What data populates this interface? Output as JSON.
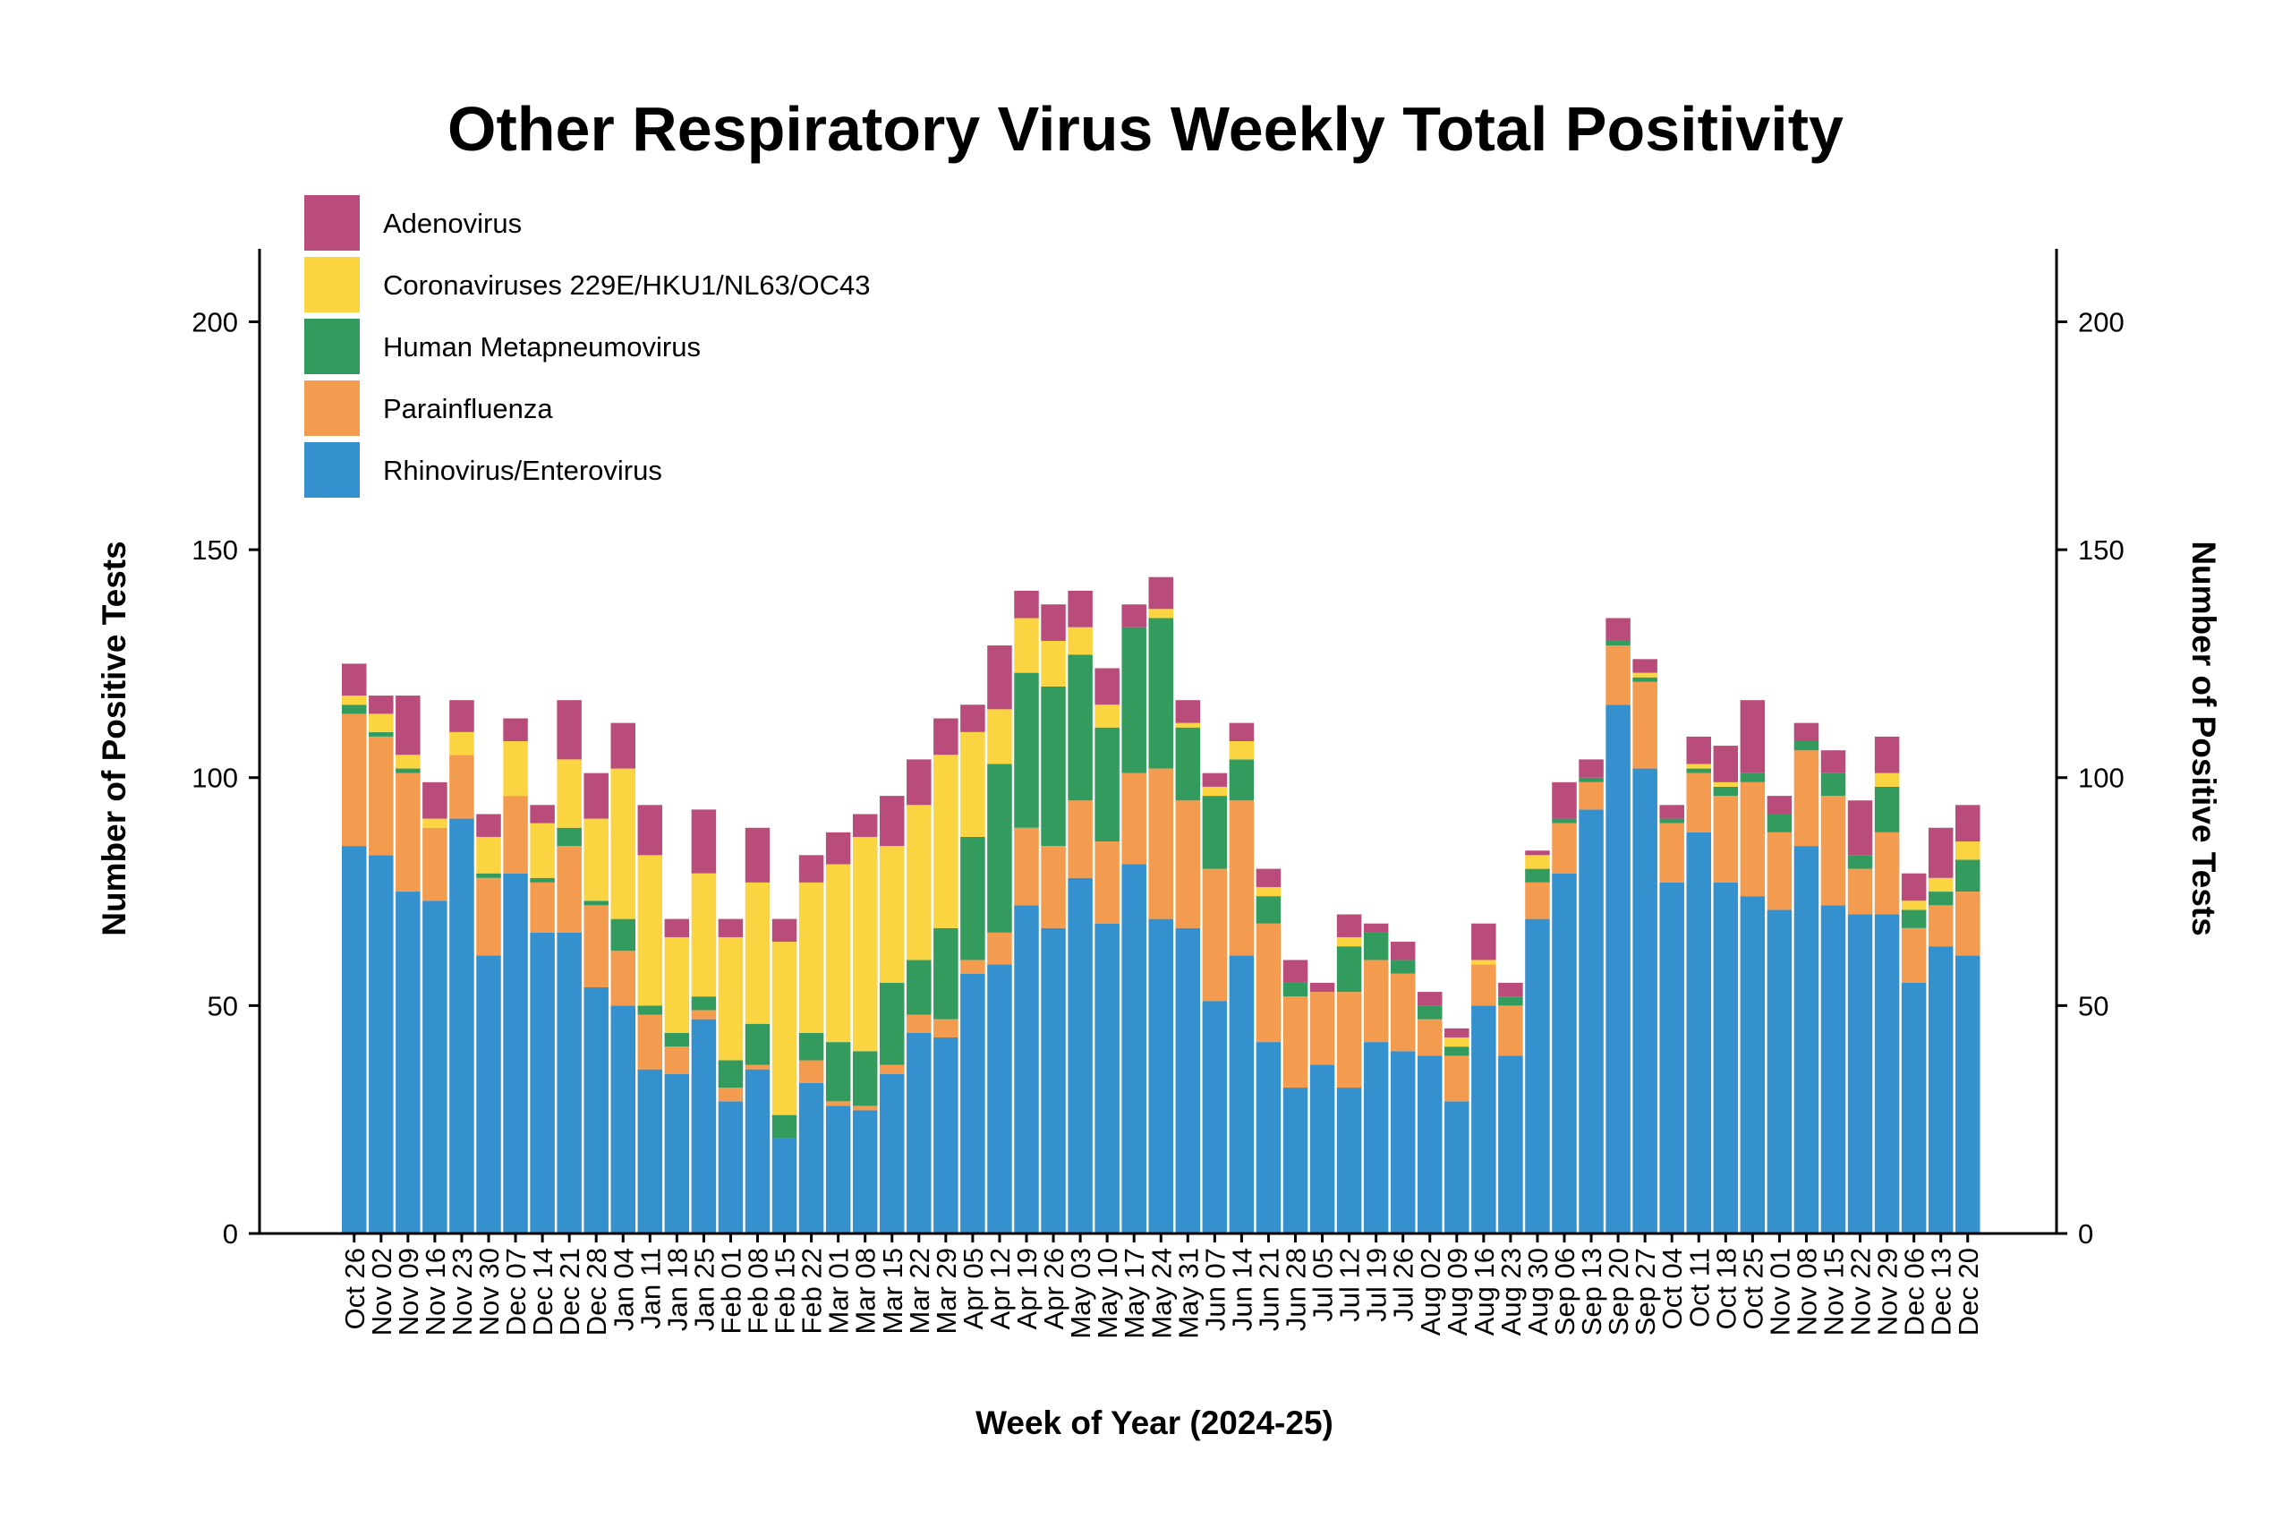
{
  "chart_data": {
    "type": "bar",
    "stacked": true,
    "title": "Other Respiratory Virus Weekly Total Positivity",
    "xlabel": "Week of Year (2024-25)",
    "ylabel": "Number of Positive Tests",
    "ylabel_right": "Number of Positive Tests",
    "ylim": [
      0,
      216
    ],
    "yticks": [
      0,
      50,
      100,
      150,
      200
    ],
    "legend_position": "top-left",
    "grid": false,
    "categories": [
      "Oct 26",
      "Nov 02",
      "Nov 09",
      "Nov 16",
      "Nov 23",
      "Nov 30",
      "Dec 07",
      "Dec 14",
      "Dec 21",
      "Dec 28",
      "Jan 04",
      "Jan 11",
      "Jan 18",
      "Jan 25",
      "Feb 01",
      "Feb 08",
      "Feb 15",
      "Feb 22",
      "Mar 01",
      "Mar 08",
      "Mar 15",
      "Mar 22",
      "Mar 29",
      "Apr 05",
      "Apr 12",
      "Apr 19",
      "Apr 26",
      "May 03",
      "May 10",
      "May 17",
      "May 24",
      "May 31",
      "Jun 07",
      "Jun 14",
      "Jun 21",
      "Jun 28",
      "Jul 05",
      "Jul 12",
      "Jul 19",
      "Jul 26",
      "Aug 02",
      "Aug 09",
      "Aug 16",
      "Aug 23",
      "Aug 30",
      "Sep 06",
      "Sep 13",
      "Sep 20",
      "Sep 27",
      "Oct 04",
      "Oct 11",
      "Oct 18",
      "Oct 25",
      "Nov 01",
      "Nov 08",
      "Nov 15",
      "Nov 22",
      "Nov 29",
      "Dec 06",
      "Dec 13",
      "Dec 20"
    ],
    "series": [
      {
        "name": "Rhinovirus/Enterovirus",
        "color": "#3591cd",
        "values": [
          85,
          83,
          75,
          73,
          91,
          61,
          79,
          66,
          66,
          54,
          50,
          36,
          35,
          47,
          29,
          36,
          21,
          33,
          28,
          27,
          35,
          44,
          43,
          57,
          59,
          72,
          67,
          78,
          68,
          81,
          69,
          67,
          51,
          61,
          42,
          32,
          37,
          32,
          42,
          40,
          39,
          29,
          50,
          39,
          69,
          79,
          93,
          116,
          102,
          77,
          88,
          77,
          74,
          71,
          85,
          72,
          70,
          70,
          55,
          63,
          61
        ]
      },
      {
        "name": "Parainfluenza",
        "color": "#f39b4f",
        "values": [
          29,
          26,
          26,
          16,
          14,
          17,
          17,
          11,
          19,
          18,
          12,
          12,
          6,
          2,
          3,
          1,
          0,
          5,
          1,
          1,
          2,
          4,
          4,
          3,
          7,
          17,
          18,
          17,
          18,
          20,
          33,
          28,
          29,
          34,
          26,
          20,
          16,
          21,
          18,
          17,
          8,
          10,
          9,
          11,
          8,
          11,
          6,
          13,
          19,
          13,
          13,
          19,
          25,
          17,
          21,
          24,
          10,
          18,
          12,
          9,
          14
        ]
      },
      {
        "name": "Human Metapneumovirus",
        "color": "#349b5e",
        "values": [
          2,
          1,
          1,
          0,
          0,
          1,
          0,
          1,
          4,
          1,
          7,
          2,
          3,
          3,
          6,
          9,
          5,
          6,
          13,
          12,
          18,
          12,
          20,
          27,
          37,
          34,
          35,
          32,
          25,
          32,
          33,
          16,
          16,
          9,
          6,
          3,
          0,
          10,
          6,
          3,
          3,
          2,
          0,
          2,
          3,
          1,
          1,
          1,
          1,
          1,
          1,
          2,
          2,
          4,
          2,
          5,
          3,
          10,
          4,
          3,
          7
        ]
      },
      {
        "name": "Coronaviruses 229E/HKU1/NL63/OC43",
        "color": "#fbd541",
        "values": [
          2,
          4,
          3,
          2,
          5,
          8,
          12,
          12,
          15,
          18,
          33,
          33,
          21,
          27,
          27,
          31,
          38,
          33,
          39,
          47,
          30,
          34,
          38,
          23,
          12,
          12,
          10,
          6,
          5,
          0,
          2,
          1,
          2,
          4,
          2,
          0,
          0,
          2,
          0,
          0,
          0,
          2,
          1,
          0,
          3,
          0,
          0,
          0,
          1,
          0,
          1,
          1,
          0,
          0,
          0,
          0,
          0,
          3,
          2,
          3,
          4
        ]
      },
      {
        "name": "Adenovirus",
        "color": "#b94c7b",
        "values": [
          7,
          4,
          13,
          8,
          7,
          5,
          5,
          4,
          13,
          10,
          10,
          11,
          4,
          14,
          4,
          12,
          5,
          6,
          7,
          5,
          11,
          10,
          8,
          6,
          14,
          6,
          8,
          8,
          8,
          5,
          7,
          5,
          3,
          4,
          4,
          5,
          2,
          5,
          2,
          4,
          3,
          2,
          8,
          3,
          1,
          8,
          4,
          5,
          3,
          3,
          6,
          8,
          16,
          4,
          4,
          5,
          12,
          8,
          6,
          11,
          8
        ]
      }
    ]
  }
}
